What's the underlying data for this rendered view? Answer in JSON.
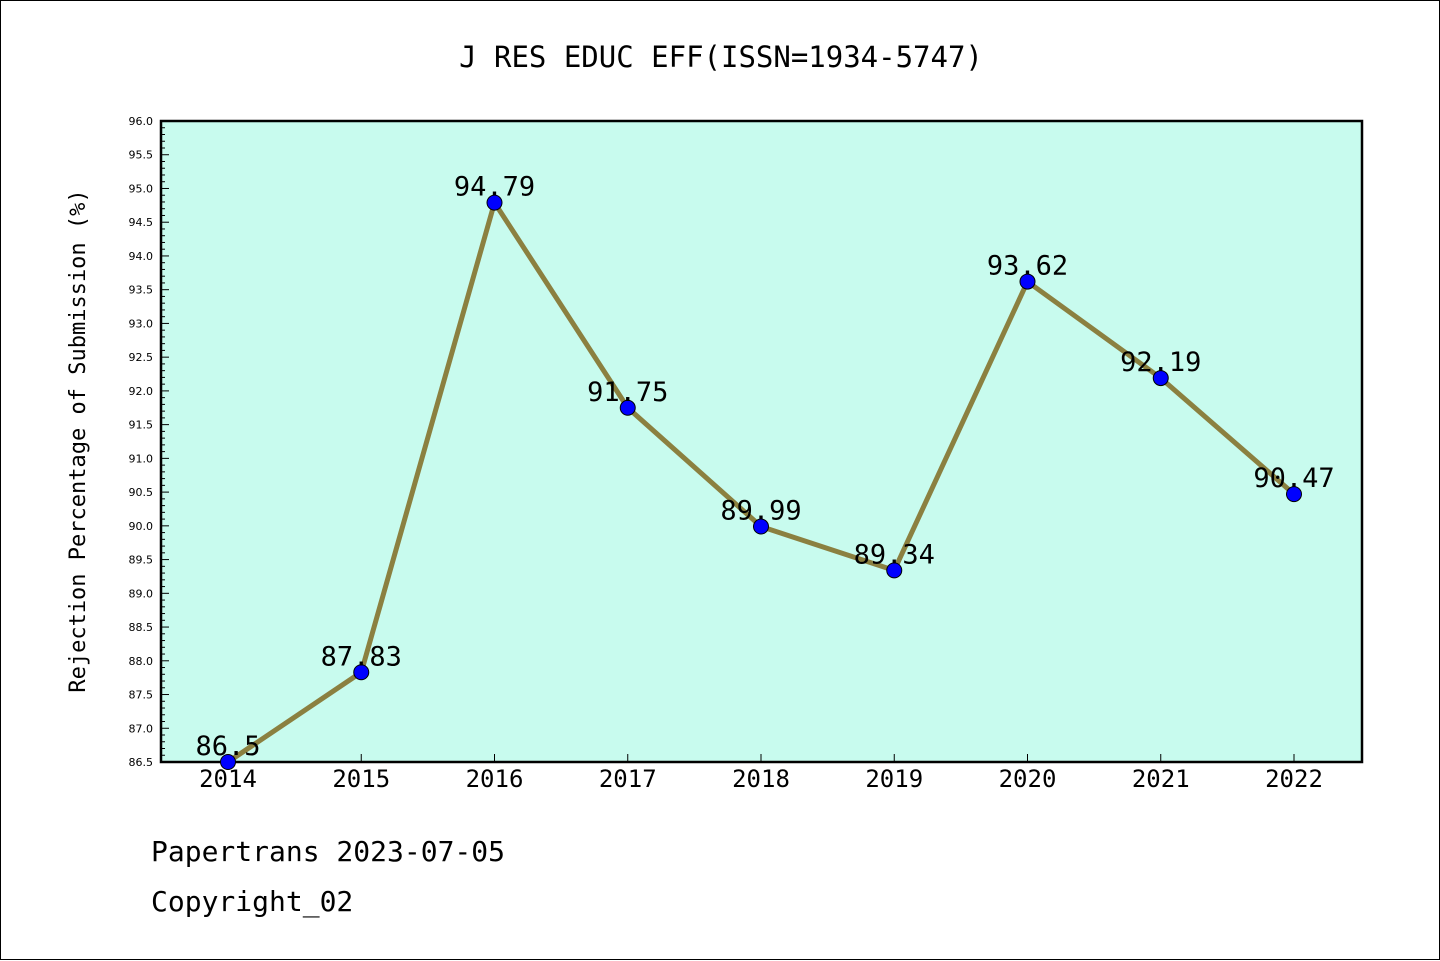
{
  "chart_data": {
    "type": "line",
    "title": "J RES EDUC EFF(ISSN=1934-5747)",
    "xlabel": "",
    "ylabel": "Rejection Percentage of Submission (%)",
    "categories": [
      "2014",
      "2015",
      "2016",
      "2017",
      "2018",
      "2019",
      "2020",
      "2021",
      "2022"
    ],
    "series": [
      {
        "values": [
          86.5,
          87.83,
          94.79,
          91.75,
          89.99,
          89.34,
          93.62,
          92.19,
          90.47
        ],
        "labels": [
          "86.5",
          "87.83",
          "94.79",
          "91.75",
          "89.99",
          "89.34",
          "93.62",
          "92.19",
          "90.47"
        ]
      }
    ],
    "ylim": [
      86.5,
      96.0
    ],
    "y_ticks": [
      "86.5",
      "87.0",
      "87.5",
      "88.0",
      "88.5",
      "89.0",
      "89.5",
      "90.0",
      "90.5",
      "91.0",
      "91.5",
      "92.0",
      "92.5",
      "93.0",
      "93.5",
      "94.0",
      "94.5",
      "95.0",
      "95.5",
      "96.0"
    ],
    "grid": false,
    "colors": {
      "plot_background": "#c8fbee",
      "line": "#8b8040",
      "marker": "#0000ff"
    }
  },
  "footer": {
    "line1": "Papertrans 2023-07-05",
    "line2": "Copyright_02"
  }
}
